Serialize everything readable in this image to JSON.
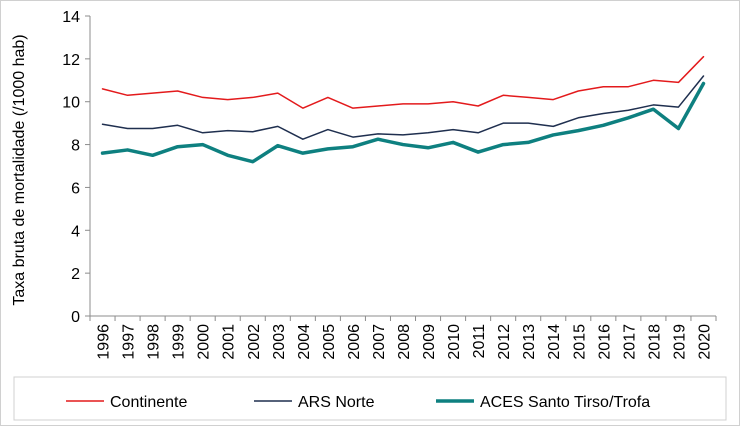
{
  "chart_data": {
    "type": "line",
    "title": "",
    "xlabel": "",
    "ylabel": "Taxa bruta de mortalidade (/1000 hab)",
    "ylim": [
      0,
      14
    ],
    "yticks": [
      0,
      2,
      4,
      6,
      8,
      10,
      12,
      14
    ],
    "categories": [
      "1996",
      "1997",
      "1998",
      "1999",
      "2000",
      "2001",
      "2002",
      "2003",
      "2004",
      "2005",
      "2006",
      "2007",
      "2008",
      "2009",
      "2010",
      "2011",
      "2012",
      "2013",
      "2014",
      "2015",
      "2016",
      "2017",
      "2018",
      "2019",
      "2020"
    ],
    "grid": false,
    "legend_position": "bottom",
    "series": [
      {
        "name": "Continente",
        "color": "#e31a1c",
        "values": [
          10.6,
          10.3,
          10.4,
          10.5,
          10.2,
          10.1,
          10.2,
          10.4,
          9.7,
          10.2,
          9.7,
          9.8,
          9.9,
          9.9,
          10.0,
          9.8,
          10.3,
          10.2,
          10.1,
          10.5,
          10.7,
          10.7,
          11.0,
          10.9,
          12.1
        ]
      },
      {
        "name": "ARS Norte",
        "color": "#1f2f4f",
        "values": [
          8.95,
          8.75,
          8.75,
          8.9,
          8.55,
          8.65,
          8.6,
          8.85,
          8.25,
          8.7,
          8.35,
          8.5,
          8.45,
          8.55,
          8.7,
          8.55,
          9.0,
          9.0,
          8.85,
          9.25,
          9.45,
          9.6,
          9.85,
          9.75,
          11.2
        ]
      },
      {
        "name": "ACES Santo Tirso/Trofa",
        "color": "#0e8080",
        "values": [
          7.6,
          7.75,
          7.5,
          7.9,
          8.0,
          7.5,
          7.2,
          7.95,
          7.6,
          7.8,
          7.9,
          8.25,
          8.0,
          7.85,
          8.1,
          7.65,
          8.0,
          8.1,
          8.45,
          8.65,
          8.9,
          9.25,
          9.65,
          8.75,
          10.85
        ]
      }
    ]
  }
}
